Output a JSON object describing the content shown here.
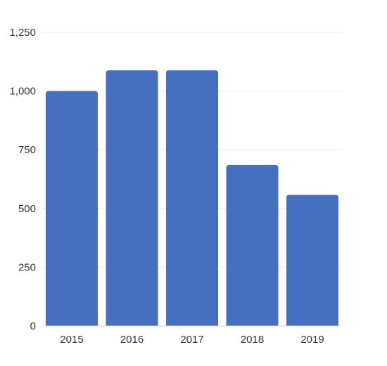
{
  "chart_data": {
    "type": "bar",
    "title": "",
    "xlabel": "",
    "ylabel": "",
    "categories": [
      "2015",
      "2016",
      "2017",
      "2018",
      "2019"
    ],
    "values": [
      1000,
      1088,
      1088,
      685,
      558
    ],
    "ylim": [
      0,
      1250
    ],
    "yticks": [
      0,
      250,
      500,
      750,
      1000,
      1250
    ],
    "ytick_labels": [
      "0",
      "250",
      "500",
      "750",
      "1,000",
      "1,250"
    ],
    "grid": true,
    "legend": "none",
    "bar_color": "#4470bf",
    "grid_color": "#ececec"
  }
}
